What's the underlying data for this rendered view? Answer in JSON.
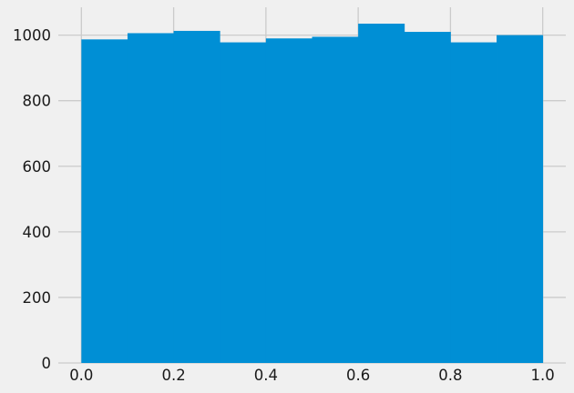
{
  "chart_data": {
    "type": "bar",
    "subtype": "histogram",
    "bin_edges": [
      0.0,
      0.1,
      0.2,
      0.3,
      0.4,
      0.5,
      0.6,
      0.7,
      0.8,
      0.9,
      1.0
    ],
    "values": [
      987,
      1006,
      1013,
      978,
      990,
      995,
      1035,
      1010,
      978,
      1000
    ],
    "title": "",
    "xlabel": "",
    "ylabel": "",
    "xlim": [
      -0.05,
      1.05
    ],
    "ylim": [
      0,
      1085
    ],
    "xticks": [
      0.0,
      0.2,
      0.4,
      0.6,
      0.8,
      1.0
    ],
    "xtick_labels": [
      "0.0",
      "0.2",
      "0.4",
      "0.6",
      "0.8",
      "1.0"
    ],
    "yticks": [
      0,
      200,
      400,
      600,
      800,
      1000
    ],
    "ytick_labels": [
      "0",
      "200",
      "400",
      "600",
      "800",
      "1000"
    ],
    "grid": true,
    "legend": "none",
    "bar_color": "#008fd5",
    "background_color": "#f0f0f0",
    "grid_color": "#cbcbcb"
  }
}
